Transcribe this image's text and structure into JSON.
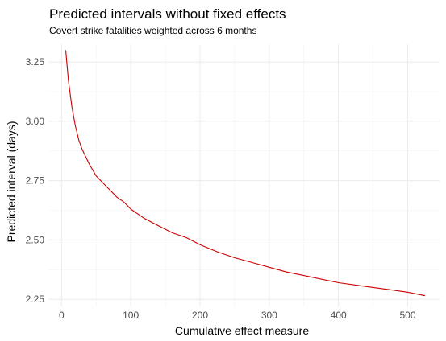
{
  "chart_data": {
    "type": "line",
    "title": "Predicted intervals without fixed effects",
    "subtitle": "Covert strike fatalities weighted across 6 months",
    "xlabel": "Cumulative effect measure",
    "ylabel": "Predicted interval (days)",
    "xlim": [
      -19,
      546
    ],
    "ylim": [
      2.22,
      3.325
    ],
    "x_ticks": [
      0,
      100,
      200,
      300,
      400,
      500
    ],
    "y_ticks": [
      2.25,
      2.5,
      2.75,
      3.0,
      3.25
    ],
    "x_tick_labels": [
      "0",
      "100",
      "200",
      "300",
      "400",
      "500"
    ],
    "y_tick_labels": [
      "2.25",
      "2.50",
      "2.75",
      "3.00",
      "3.25"
    ],
    "grid": true,
    "series": [
      {
        "color": "#cc0000",
        "x": [
          6,
          10,
          15,
          20,
          25,
          30,
          40,
          50,
          60,
          70,
          80,
          90,
          100,
          110,
          120,
          140,
          160,
          180,
          200,
          225,
          250,
          275,
          300,
          325,
          350,
          375,
          400,
          425,
          450,
          475,
          500,
          525
        ],
        "y": [
          3.3,
          3.17,
          3.06,
          2.98,
          2.92,
          2.88,
          2.82,
          2.77,
          2.74,
          2.71,
          2.68,
          2.66,
          2.63,
          2.61,
          2.59,
          2.56,
          2.53,
          2.51,
          2.48,
          2.45,
          2.425,
          2.405,
          2.385,
          2.365,
          2.35,
          2.335,
          2.32,
          2.31,
          2.3,
          2.29,
          2.28,
          2.265
        ]
      }
    ]
  }
}
